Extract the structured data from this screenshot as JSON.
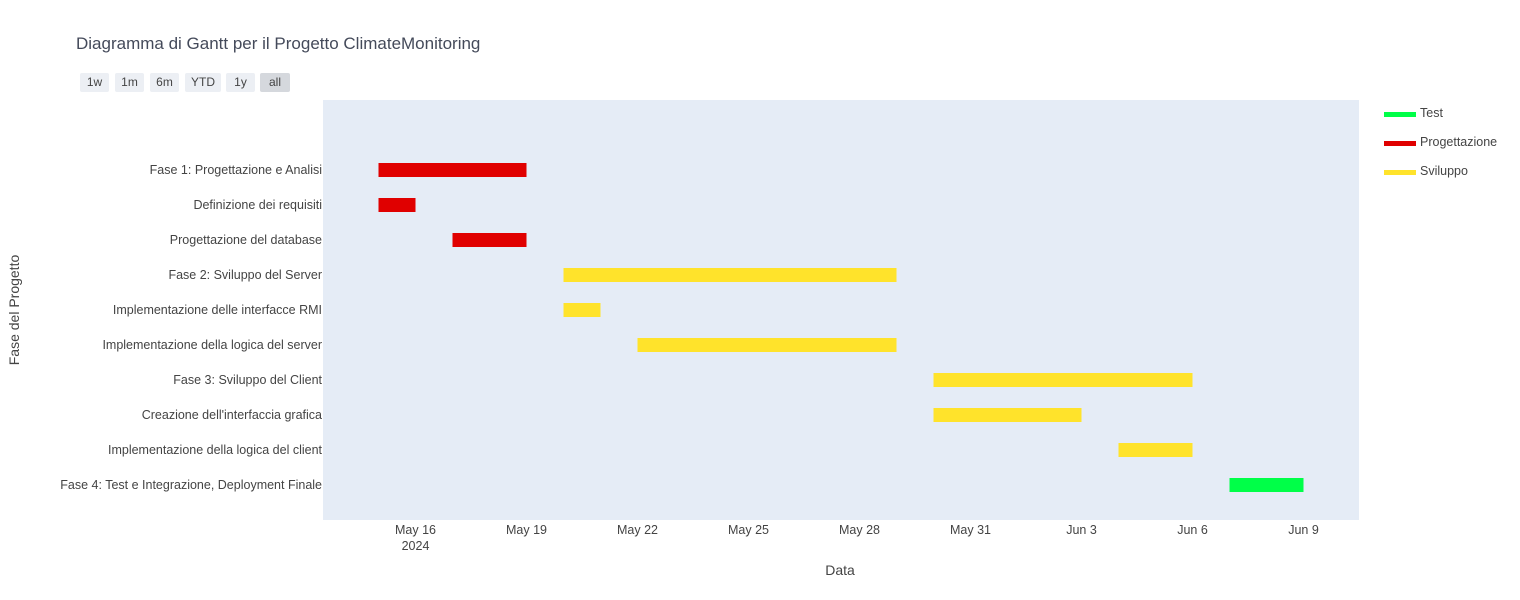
{
  "page": {
    "range_buttons": [
      "1w",
      "1m",
      "6m",
      "YTD",
      "1y",
      "all"
    ],
    "active_range": "all"
  },
  "chart_data": {
    "type": "gantt",
    "title": "Diagramma di Gantt per il Progetto ClimateMonitoring",
    "xlabel": "Data",
    "ylabel": "Fase del Progetto",
    "x_range": [
      "2024-05-13T12:00",
      "2024-06-10T12:00"
    ],
    "x_ticks": [
      {
        "date": "2024-05-16",
        "label": "May 16",
        "sublabel": "2024"
      },
      {
        "date": "2024-05-19",
        "label": "May 19"
      },
      {
        "date": "2024-05-22",
        "label": "May 22"
      },
      {
        "date": "2024-05-25",
        "label": "May 25"
      },
      {
        "date": "2024-05-28",
        "label": "May 28"
      },
      {
        "date": "2024-05-31",
        "label": "May 31"
      },
      {
        "date": "2024-06-03",
        "label": "Jun 3"
      },
      {
        "date": "2024-06-06",
        "label": "Jun 6"
      },
      {
        "date": "2024-06-09",
        "label": "Jun 9"
      }
    ],
    "categories": [
      "Fase 1: Progettazione e Analisi",
      "Definizione dei requisiti",
      "Progettazione del database",
      "Fase 2: Sviluppo del Server",
      "Implementazione delle interfacce RMI",
      "Implementazione della logica del server",
      "Fase 3: Sviluppo del Client",
      "Creazione dell'interfaccia grafica",
      "Implementazione della logica del client",
      "Fase 4: Test e Integrazione, Deployment Finale"
    ],
    "tasks": [
      {
        "task": "Fase 1: Progettazione e Analisi",
        "start": "2024-05-15",
        "end": "2024-05-19",
        "resource": "Progettazione"
      },
      {
        "task": "Definizione dei requisiti",
        "start": "2024-05-15",
        "end": "2024-05-16",
        "resource": "Progettazione"
      },
      {
        "task": "Progettazione del database",
        "start": "2024-05-17",
        "end": "2024-05-19",
        "resource": "Progettazione"
      },
      {
        "task": "Fase 2: Sviluppo del Server",
        "start": "2024-05-20",
        "end": "2024-05-29",
        "resource": "Sviluppo"
      },
      {
        "task": "Implementazione delle interfacce RMI",
        "start": "2024-05-20",
        "end": "2024-05-21",
        "resource": "Sviluppo"
      },
      {
        "task": "Implementazione della logica del server",
        "start": "2024-05-22",
        "end": "2024-05-29",
        "resource": "Sviluppo"
      },
      {
        "task": "Fase 3: Sviluppo del Client",
        "start": "2024-05-30",
        "end": "2024-06-06",
        "resource": "Sviluppo"
      },
      {
        "task": "Creazione dell'interfaccia grafica",
        "start": "2024-05-30",
        "end": "2024-06-03",
        "resource": "Sviluppo"
      },
      {
        "task": "Implementazione della logica del client",
        "start": "2024-06-04",
        "end": "2024-06-06",
        "resource": "Sviluppo"
      },
      {
        "task": "Fase 4: Test e Integrazione, Deployment Finale",
        "start": "2024-06-07",
        "end": "2024-06-09",
        "resource": "Test"
      }
    ],
    "legend": [
      {
        "name": "Test",
        "color": "#00ff48"
      },
      {
        "name": "Progettazione",
        "color": "#e00000"
      },
      {
        "name": "Sviluppo",
        "color": "#ffe32b"
      }
    ],
    "legend_position": "top-right",
    "plot_bgcolor": "#e5ecf6",
    "grid": false
  }
}
